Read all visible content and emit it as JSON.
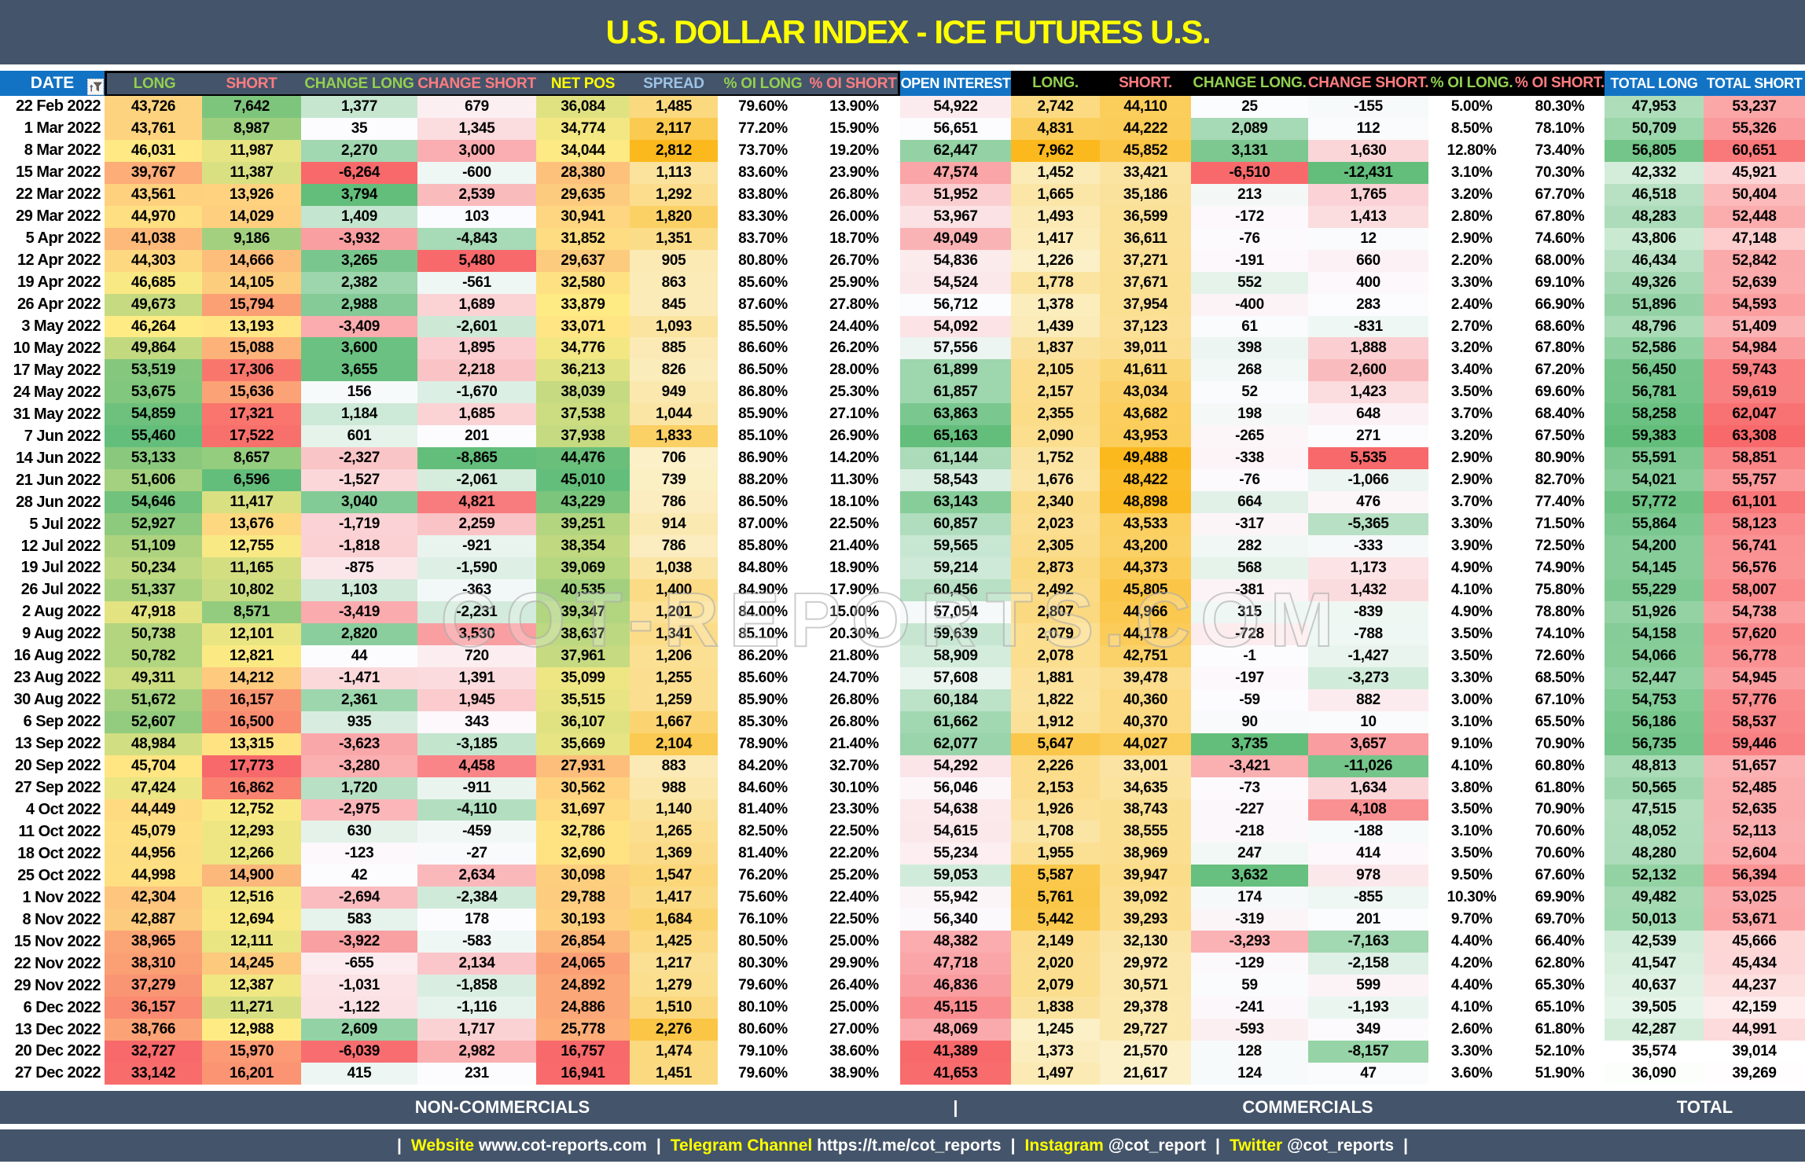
{
  "title": "U.S. DOLLAR INDEX - ICE FUTURES U.S.",
  "watermark": "COT-REPORTS.COM",
  "colors": {
    "slate": "#44546A",
    "blue": "#1273C5",
    "title_yellow": "#FFFF00",
    "header_green": "#92D050",
    "header_red": "#FF7C80",
    "header_yellow": "#FFFF00",
    "header_lightblue": "#9DC3E6",
    "cell_text": "#000000"
  },
  "heatmap_scales": {
    "ryg": {
      "stops": [
        "#F8696B",
        "#FFEB84",
        "#63BE7B"
      ],
      "midpoint": "median"
    },
    "gyr": {
      "stops": [
        "#63BE7B",
        "#FFEB84",
        "#F8696B"
      ],
      "midpoint": "median"
    },
    "rwg": {
      "stops": [
        "#F8696B",
        "#FCFCFF",
        "#63BE7B"
      ],
      "midpoint": "median"
    },
    "gwr": {
      "stops": [
        "#63BE7B",
        "#FCFCFF",
        "#F8696B"
      ],
      "midpoint": "median"
    },
    "gold": {
      "stops": [
        "#FBF0C7",
        "#FBDE8F",
        "#FBB91E"
      ],
      "midpoint": "median"
    },
    "wg": {
      "stops": [
        "#FFFFFF",
        "#63BE7B"
      ]
    },
    "wr": {
      "stops": [
        "#FFFFFF",
        "#F8696B"
      ]
    }
  },
  "section_bar": {
    "non_commercials": "NON-COMMERCIALS",
    "divider": "|",
    "commercials": "COMMERCIALS",
    "total": "TOTAL"
  },
  "footer": {
    "separator": "|",
    "segments": [
      {
        "label": "Website",
        "value": "www.cot-reports.com"
      },
      {
        "label": "Telegram Channel",
        "value": "https://t.me/cot_reports"
      },
      {
        "label": "Instagram",
        "value": "@cot_report"
      },
      {
        "label": "Twitter",
        "value": "@cot_reports"
      }
    ]
  },
  "chart_data": {
    "type": "table",
    "title": "U.S. DOLLAR INDEX - ICE FUTURES U.S.",
    "groups": [
      "NON-COMMERCIALS",
      "COMMERCIALS",
      "TOTAL"
    ],
    "columns": [
      {
        "label": "DATE",
        "scale": null,
        "head": "date",
        "text": "white"
      },
      {
        "label": "LONG",
        "scale": "ryg",
        "head": "slate",
        "text": "green"
      },
      {
        "label": "SHORT",
        "scale": "gyr",
        "head": "slate",
        "text": "red"
      },
      {
        "label": "CHANGE LONG",
        "scale": "rwg",
        "head": "slate",
        "text": "green"
      },
      {
        "label": "CHANGE SHORT",
        "scale": "gwr",
        "head": "slate",
        "text": "red"
      },
      {
        "label": "NET POS",
        "scale": "ryg",
        "head": "slate",
        "text": "yellow"
      },
      {
        "label": "SPREAD",
        "scale": "gold",
        "head": "slate",
        "text": "blue"
      },
      {
        "label": "% OI LONG",
        "scale": null,
        "head": "slate",
        "text": "green"
      },
      {
        "label": "% OI SHORT",
        "scale": null,
        "head": "slate",
        "text": "red"
      },
      {
        "label": "OPEN INTEREST",
        "scale": "rwg",
        "head": "blue",
        "text": "white"
      },
      {
        "label": "LONG.",
        "scale": "gold",
        "head": "black",
        "text": "green"
      },
      {
        "label": "SHORT.",
        "scale": "gold",
        "head": "black",
        "text": "red"
      },
      {
        "label": "CHANGE LONG.",
        "scale": "rwg",
        "head": "black",
        "text": "green"
      },
      {
        "label": "CHANGE SHORT.",
        "scale": "gwr",
        "head": "black",
        "text": "red"
      },
      {
        "label": "% OI LONG.",
        "scale": null,
        "head": "black",
        "text": "green"
      },
      {
        "label": "% OI SHORT.",
        "scale": null,
        "head": "black",
        "text": "red"
      },
      {
        "label": "TOTAL LONG",
        "scale": "wg",
        "head": "blue",
        "text": "white"
      },
      {
        "label": "TOTAL SHORT",
        "scale": "wr",
        "head": "blue",
        "text": "white"
      }
    ],
    "rows": [
      [
        "22 Feb 2022",
        "43,726",
        "7,642",
        "1,377",
        "679",
        "36,084",
        "1,485",
        "79.60%",
        "13.90%",
        "54,922",
        "2,742",
        "44,110",
        "25",
        "-155",
        "5.00%",
        "80.30%",
        "47,953",
        "53,237"
      ],
      [
        "1 Mar 2022",
        "43,761",
        "8,987",
        "35",
        "1,345",
        "34,774",
        "2,117",
        "77.20%",
        "15.90%",
        "56,651",
        "4,831",
        "44,222",
        "2,089",
        "112",
        "8.50%",
        "78.10%",
        "50,709",
        "55,326"
      ],
      [
        "8 Mar 2022",
        "46,031",
        "11,987",
        "2,270",
        "3,000",
        "34,044",
        "2,812",
        "73.70%",
        "19.20%",
        "62,447",
        "7,962",
        "45,852",
        "3,131",
        "1,630",
        "12.80%",
        "73.40%",
        "56,805",
        "60,651"
      ],
      [
        "15 Mar 2022",
        "39,767",
        "11,387",
        "-6,264",
        "-600",
        "28,380",
        "1,113",
        "83.60%",
        "23.90%",
        "47,574",
        "1,452",
        "33,421",
        "-6,510",
        "-12,431",
        "3.10%",
        "70.30%",
        "42,332",
        "45,921"
      ],
      [
        "22 Mar 2022",
        "43,561",
        "13,926",
        "3,794",
        "2,539",
        "29,635",
        "1,292",
        "83.80%",
        "26.80%",
        "51,952",
        "1,665",
        "35,186",
        "213",
        "1,765",
        "3.20%",
        "67.70%",
        "46,518",
        "50,404"
      ],
      [
        "29 Mar 2022",
        "44,970",
        "14,029",
        "1,409",
        "103",
        "30,941",
        "1,820",
        "83.30%",
        "26.00%",
        "53,967",
        "1,493",
        "36,599",
        "-172",
        "1,413",
        "2.80%",
        "67.80%",
        "48,283",
        "52,448"
      ],
      [
        "5 Apr 2022",
        "41,038",
        "9,186",
        "-3,932",
        "-4,843",
        "31,852",
        "1,351",
        "83.70%",
        "18.70%",
        "49,049",
        "1,417",
        "36,611",
        "-76",
        "12",
        "2.90%",
        "74.60%",
        "43,806",
        "47,148"
      ],
      [
        "12 Apr 2022",
        "44,303",
        "14,666",
        "3,265",
        "5,480",
        "29,637",
        "905",
        "80.80%",
        "26.70%",
        "54,836",
        "1,226",
        "37,271",
        "-191",
        "660",
        "2.20%",
        "68.00%",
        "46,434",
        "52,842"
      ],
      [
        "19 Apr 2022",
        "46,685",
        "14,105",
        "2,382",
        "-561",
        "32,580",
        "863",
        "85.60%",
        "25.90%",
        "54,524",
        "1,778",
        "37,671",
        "552",
        "400",
        "3.30%",
        "69.10%",
        "49,326",
        "52,639"
      ],
      [
        "26 Apr 2022",
        "49,673",
        "15,794",
        "2,988",
        "1,689",
        "33,879",
        "845",
        "87.60%",
        "27.80%",
        "56,712",
        "1,378",
        "37,954",
        "-400",
        "283",
        "2.40%",
        "66.90%",
        "51,896",
        "54,593"
      ],
      [
        "3 May 2022",
        "46,264",
        "13,193",
        "-3,409",
        "-2,601",
        "33,071",
        "1,093",
        "85.50%",
        "24.40%",
        "54,092",
        "1,439",
        "37,123",
        "61",
        "-831",
        "2.70%",
        "68.60%",
        "48,796",
        "51,409"
      ],
      [
        "10 May 2022",
        "49,864",
        "15,088",
        "3,600",
        "1,895",
        "34,776",
        "885",
        "86.60%",
        "26.20%",
        "57,556",
        "1,837",
        "39,011",
        "398",
        "1,888",
        "3.20%",
        "67.80%",
        "52,586",
        "54,984"
      ],
      [
        "17 May 2022",
        "53,519",
        "17,306",
        "3,655",
        "2,218",
        "36,213",
        "826",
        "86.50%",
        "28.00%",
        "61,899",
        "2,105",
        "41,611",
        "268",
        "2,600",
        "3.40%",
        "67.20%",
        "56,450",
        "59,743"
      ],
      [
        "24 May 2022",
        "53,675",
        "15,636",
        "156",
        "-1,670",
        "38,039",
        "949",
        "86.80%",
        "25.30%",
        "61,857",
        "2,157",
        "43,034",
        "52",
        "1,423",
        "3.50%",
        "69.60%",
        "56,781",
        "59,619"
      ],
      [
        "31 May 2022",
        "54,859",
        "17,321",
        "1,184",
        "1,685",
        "37,538",
        "1,044",
        "85.90%",
        "27.10%",
        "63,863",
        "2,355",
        "43,682",
        "198",
        "648",
        "3.70%",
        "68.40%",
        "58,258",
        "62,047"
      ],
      [
        "7 Jun 2022",
        "55,460",
        "17,522",
        "601",
        "201",
        "37,938",
        "1,833",
        "85.10%",
        "26.90%",
        "65,163",
        "2,090",
        "43,953",
        "-265",
        "271",
        "3.20%",
        "67.50%",
        "59,383",
        "63,308"
      ],
      [
        "14 Jun 2022",
        "53,133",
        "8,657",
        "-2,327",
        "-8,865",
        "44,476",
        "706",
        "86.90%",
        "14.20%",
        "61,144",
        "1,752",
        "49,488",
        "-338",
        "5,535",
        "2.90%",
        "80.90%",
        "55,591",
        "58,851"
      ],
      [
        "21 Jun 2022",
        "51,606",
        "6,596",
        "-1,527",
        "-2,061",
        "45,010",
        "739",
        "88.20%",
        "11.30%",
        "58,543",
        "1,676",
        "48,422",
        "-76",
        "-1,066",
        "2.90%",
        "82.70%",
        "54,021",
        "55,757"
      ],
      [
        "28 Jun 2022",
        "54,646",
        "11,417",
        "3,040",
        "4,821",
        "43,229",
        "786",
        "86.50%",
        "18.10%",
        "63,143",
        "2,340",
        "48,898",
        "664",
        "476",
        "3.70%",
        "77.40%",
        "57,772",
        "61,101"
      ],
      [
        "5 Jul 2022",
        "52,927",
        "13,676",
        "-1,719",
        "2,259",
        "39,251",
        "914",
        "87.00%",
        "22.50%",
        "60,857",
        "2,023",
        "43,533",
        "-317",
        "-5,365",
        "3.30%",
        "71.50%",
        "55,864",
        "58,123"
      ],
      [
        "12 Jul 2022",
        "51,109",
        "12,755",
        "-1,818",
        "-921",
        "38,354",
        "786",
        "85.80%",
        "21.40%",
        "59,565",
        "2,305",
        "43,200",
        "282",
        "-333",
        "3.90%",
        "72.50%",
        "54,200",
        "56,741"
      ],
      [
        "19 Jul 2022",
        "50,234",
        "11,165",
        "-875",
        "-1,590",
        "39,069",
        "1,038",
        "84.80%",
        "18.90%",
        "59,214",
        "2,873",
        "44,373",
        "568",
        "1,173",
        "4.90%",
        "74.90%",
        "54,145",
        "56,576"
      ],
      [
        "26 Jul 2022",
        "51,337",
        "10,802",
        "1,103",
        "-363",
        "40,535",
        "1,400",
        "84.90%",
        "17.90%",
        "60,456",
        "2,492",
        "45,805",
        "-381",
        "1,432",
        "4.10%",
        "75.80%",
        "55,229",
        "58,007"
      ],
      [
        "2 Aug 2022",
        "47,918",
        "8,571",
        "-3,419",
        "-2,231",
        "39,347",
        "1,201",
        "84.00%",
        "15.00%",
        "57,054",
        "2,807",
        "44,966",
        "315",
        "-839",
        "4.90%",
        "78.80%",
        "51,926",
        "54,738"
      ],
      [
        "9 Aug 2022",
        "50,738",
        "12,101",
        "2,820",
        "3,530",
        "38,637",
        "1,341",
        "85.10%",
        "20.30%",
        "59,639",
        "2,079",
        "44,178",
        "-728",
        "-788",
        "3.50%",
        "74.10%",
        "54,158",
        "57,620"
      ],
      [
        "16 Aug 2022",
        "50,782",
        "12,821",
        "44",
        "720",
        "37,961",
        "1,206",
        "86.20%",
        "21.80%",
        "58,909",
        "2,078",
        "42,751",
        "-1",
        "-1,427",
        "3.50%",
        "72.60%",
        "54,066",
        "56,778"
      ],
      [
        "23 Aug 2022",
        "49,311",
        "14,212",
        "-1,471",
        "1,391",
        "35,099",
        "1,255",
        "85.60%",
        "24.70%",
        "57,608",
        "1,881",
        "39,478",
        "-197",
        "-3,273",
        "3.30%",
        "68.50%",
        "52,447",
        "54,945"
      ],
      [
        "30 Aug 2022",
        "51,672",
        "16,157",
        "2,361",
        "1,945",
        "35,515",
        "1,259",
        "85.90%",
        "26.80%",
        "60,184",
        "1,822",
        "40,360",
        "-59",
        "882",
        "3.00%",
        "67.10%",
        "54,753",
        "57,776"
      ],
      [
        "6 Sep 2022",
        "52,607",
        "16,500",
        "935",
        "343",
        "36,107",
        "1,667",
        "85.30%",
        "26.80%",
        "61,662",
        "1,912",
        "40,370",
        "90",
        "10",
        "3.10%",
        "65.50%",
        "56,186",
        "58,537"
      ],
      [
        "13 Sep 2022",
        "48,984",
        "13,315",
        "-3,623",
        "-3,185",
        "35,669",
        "2,104",
        "78.90%",
        "21.40%",
        "62,077",
        "5,647",
        "44,027",
        "3,735",
        "3,657",
        "9.10%",
        "70.90%",
        "56,735",
        "59,446"
      ],
      [
        "20 Sep 2022",
        "45,704",
        "17,773",
        "-3,280",
        "4,458",
        "27,931",
        "883",
        "84.20%",
        "32.70%",
        "54,292",
        "2,226",
        "33,001",
        "-3,421",
        "-11,026",
        "4.10%",
        "60.80%",
        "48,813",
        "51,657"
      ],
      [
        "27 Sep 2022",
        "47,424",
        "16,862",
        "1,720",
        "-911",
        "30,562",
        "988",
        "84.60%",
        "30.10%",
        "56,046",
        "2,153",
        "34,635",
        "-73",
        "1,634",
        "3.80%",
        "61.80%",
        "50,565",
        "52,485"
      ],
      [
        "4 Oct 2022",
        "44,449",
        "12,752",
        "-2,975",
        "-4,110",
        "31,697",
        "1,140",
        "81.40%",
        "23.30%",
        "54,638",
        "1,926",
        "38,743",
        "-227",
        "4,108",
        "3.50%",
        "70.90%",
        "47,515",
        "52,635"
      ],
      [
        "11 Oct 2022",
        "45,079",
        "12,293",
        "630",
        "-459",
        "32,786",
        "1,265",
        "82.50%",
        "22.50%",
        "54,615",
        "1,708",
        "38,555",
        "-218",
        "-188",
        "3.10%",
        "70.60%",
        "48,052",
        "52,113"
      ],
      [
        "18 Oct 2022",
        "44,956",
        "12,266",
        "-123",
        "-27",
        "32,690",
        "1,369",
        "81.40%",
        "22.20%",
        "55,234",
        "1,955",
        "38,969",
        "247",
        "414",
        "3.50%",
        "70.60%",
        "48,280",
        "52,604"
      ],
      [
        "25 Oct 2022",
        "44,998",
        "14,900",
        "42",
        "2,634",
        "30,098",
        "1,547",
        "76.20%",
        "25.20%",
        "59,053",
        "5,587",
        "39,947",
        "3,632",
        "978",
        "9.50%",
        "67.60%",
        "52,132",
        "56,394"
      ],
      [
        "1 Nov 2022",
        "42,304",
        "12,516",
        "-2,694",
        "-2,384",
        "29,788",
        "1,417",
        "75.60%",
        "22.40%",
        "55,942",
        "5,761",
        "39,092",
        "174",
        "-855",
        "10.30%",
        "69.90%",
        "49,482",
        "53,025"
      ],
      [
        "8 Nov 2022",
        "42,887",
        "12,694",
        "583",
        "178",
        "30,193",
        "1,684",
        "76.10%",
        "22.50%",
        "56,340",
        "5,442",
        "39,293",
        "-319",
        "201",
        "9.70%",
        "69.70%",
        "50,013",
        "53,671"
      ],
      [
        "15 Nov 2022",
        "38,965",
        "12,111",
        "-3,922",
        "-583",
        "26,854",
        "1,425",
        "80.50%",
        "25.00%",
        "48,382",
        "2,149",
        "32,130",
        "-3,293",
        "-7,163",
        "4.40%",
        "66.40%",
        "42,539",
        "45,666"
      ],
      [
        "22 Nov 2022",
        "38,310",
        "14,245",
        "-655",
        "2,134",
        "24,065",
        "1,217",
        "80.30%",
        "29.90%",
        "47,718",
        "2,020",
        "29,972",
        "-129",
        "-2,158",
        "4.20%",
        "62.80%",
        "41,547",
        "45,434"
      ],
      [
        "29 Nov 2022",
        "37,279",
        "12,387",
        "-1,031",
        "-1,858",
        "24,892",
        "1,279",
        "79.60%",
        "26.40%",
        "46,836",
        "2,079",
        "30,571",
        "59",
        "599",
        "4.40%",
        "65.30%",
        "40,637",
        "44,237"
      ],
      [
        "6 Dec 2022",
        "36,157",
        "11,271",
        "-1,122",
        "-1,116",
        "24,886",
        "1,510",
        "80.10%",
        "25.00%",
        "45,115",
        "1,838",
        "29,378",
        "-241",
        "-1,193",
        "4.10%",
        "65.10%",
        "39,505",
        "42,159"
      ],
      [
        "13 Dec 2022",
        "38,766",
        "12,988",
        "2,609",
        "1,717",
        "25,778",
        "2,276",
        "80.60%",
        "27.00%",
        "48,069",
        "1,245",
        "29,727",
        "-593",
        "349",
        "2.60%",
        "61.80%",
        "42,287",
        "44,991"
      ],
      [
        "20 Dec 2022",
        "32,727",
        "15,970",
        "-6,039",
        "2,982",
        "16,757",
        "1,474",
        "79.10%",
        "38.60%",
        "41,389",
        "1,373",
        "21,570",
        "128",
        "-8,157",
        "3.30%",
        "52.10%",
        "35,574",
        "39,014"
      ],
      [
        "27 Dec 2022",
        "33,142",
        "16,201",
        "415",
        "231",
        "16,941",
        "1,451",
        "79.60%",
        "38.90%",
        "41,653",
        "1,497",
        "21,617",
        "124",
        "47",
        "3.60%",
        "51.90%",
        "36,090",
        "39,269"
      ]
    ]
  }
}
